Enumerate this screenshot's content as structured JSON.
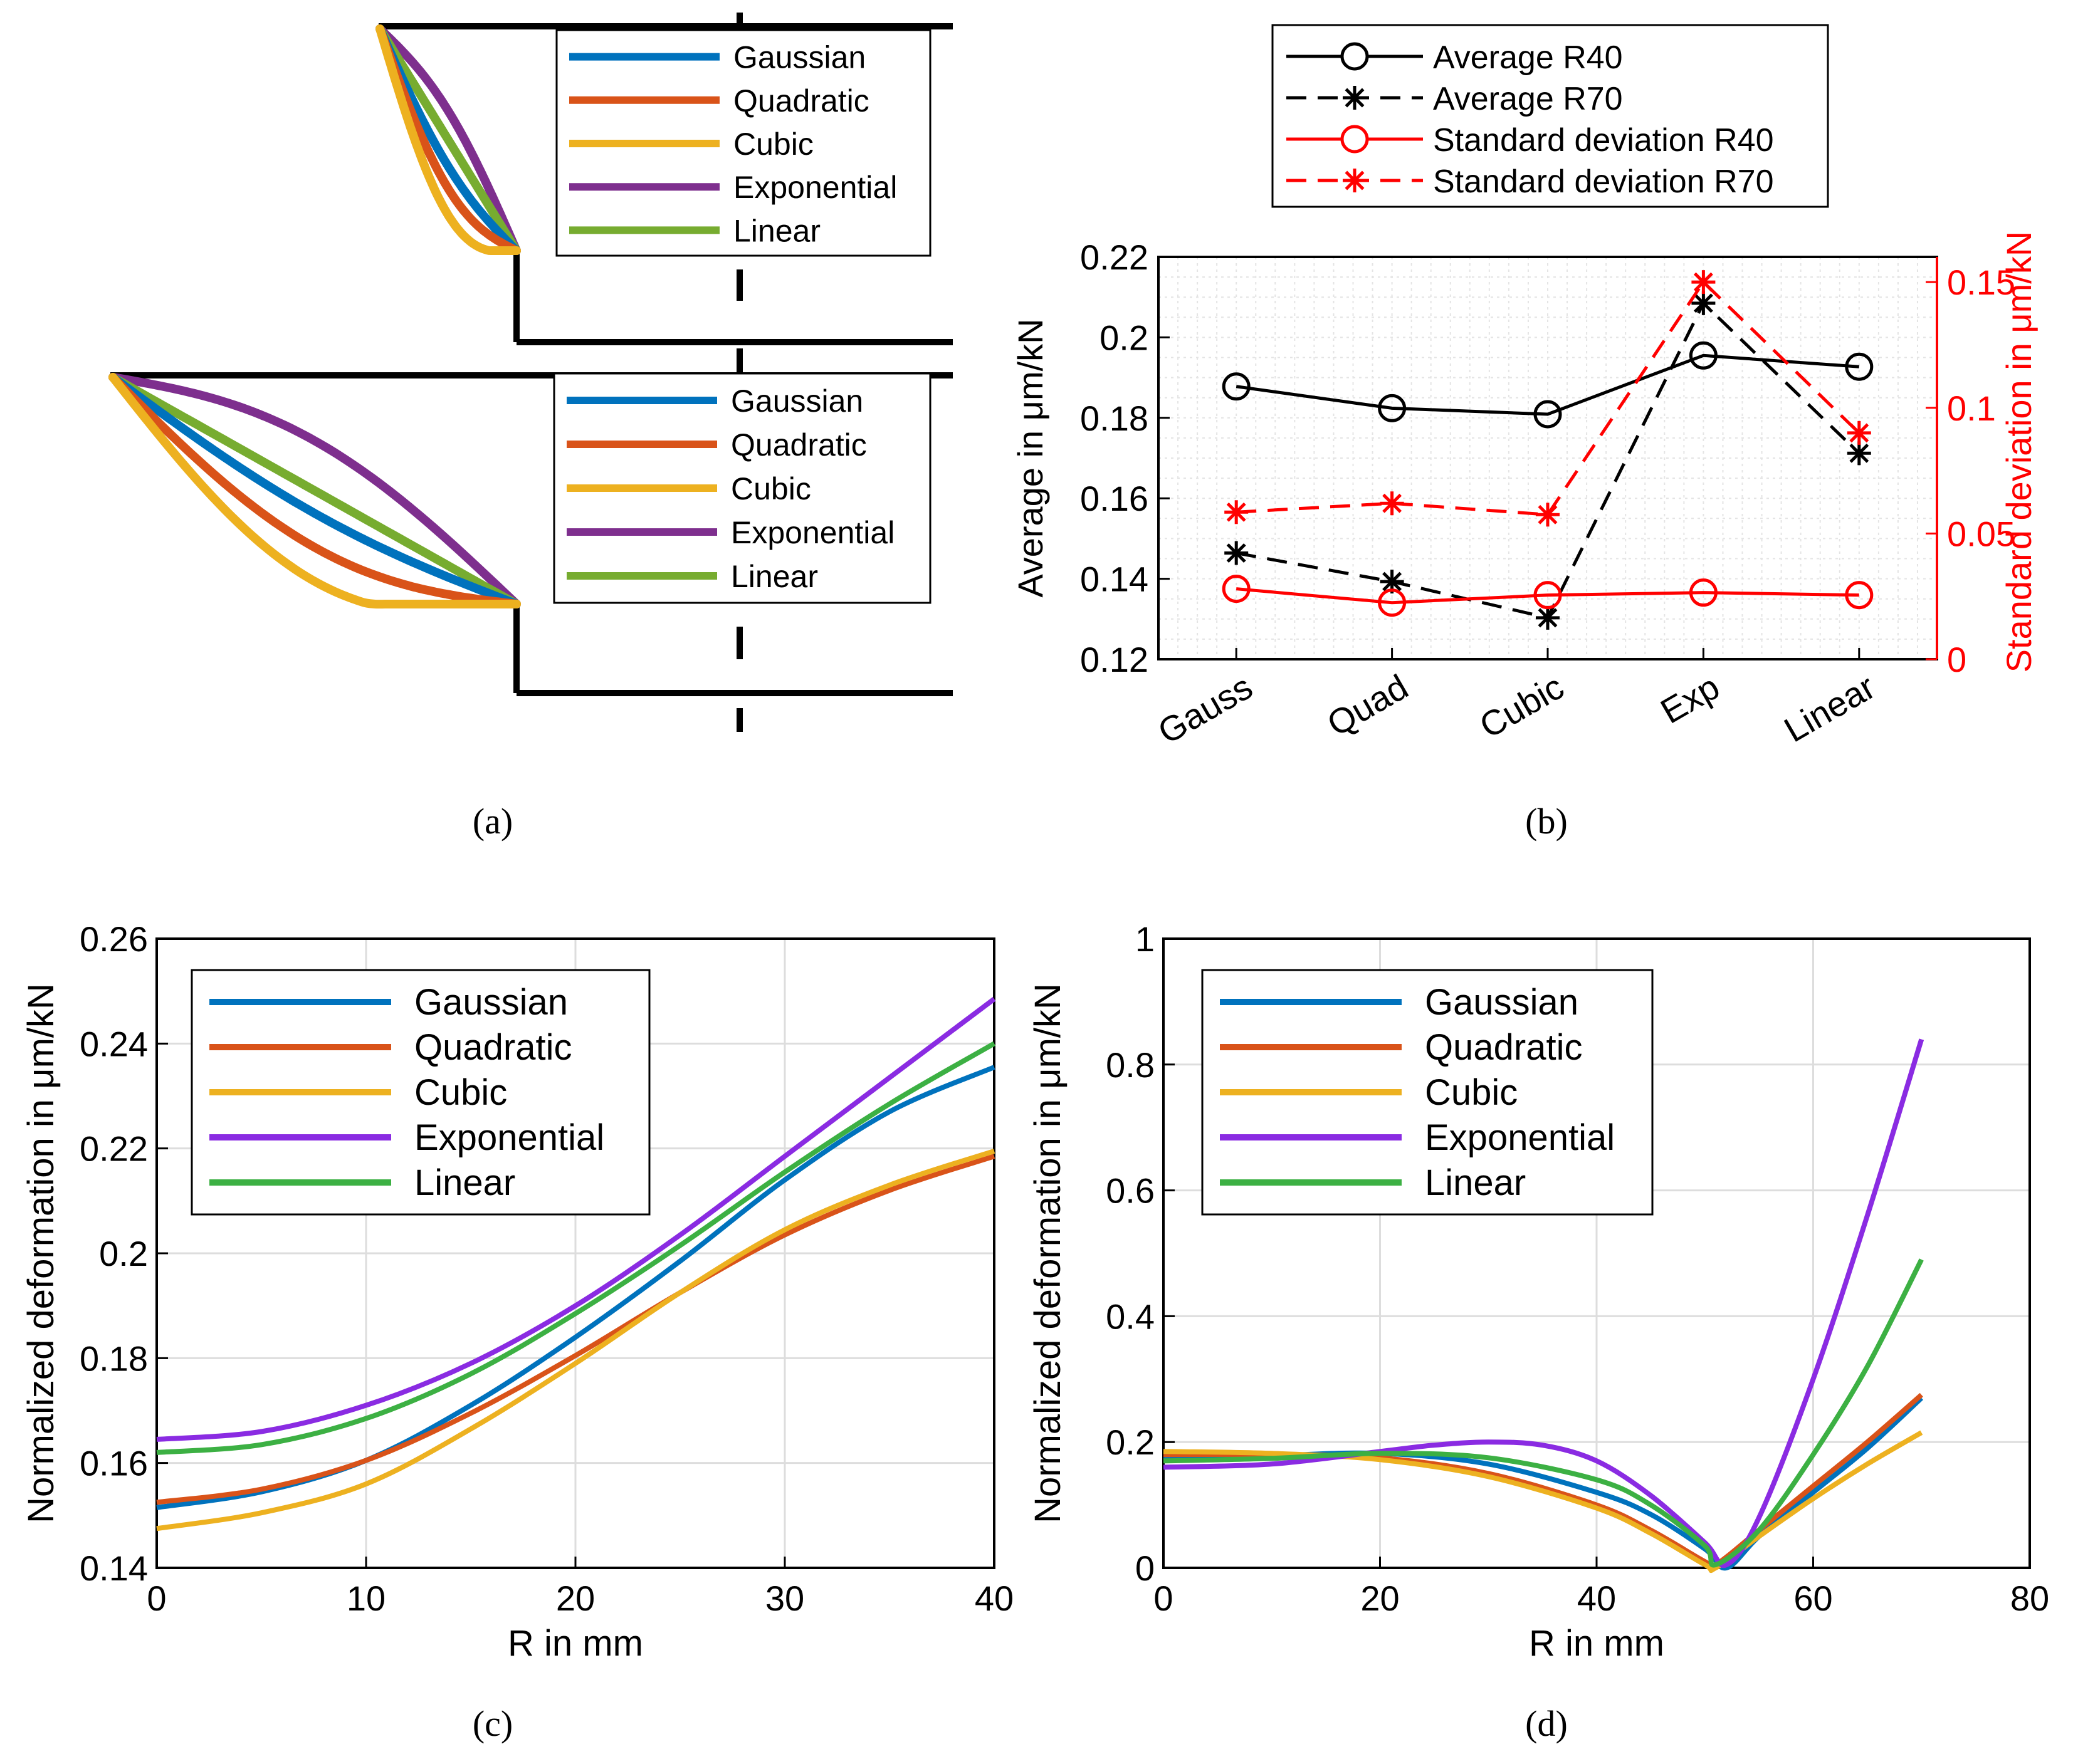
{
  "colors": {
    "gaussian": "#0072BD",
    "quadratic": "#D95319",
    "cubic": "#EDB120",
    "exponential_a": "#7E2F8E",
    "exponential_cd": "#8A2BE2",
    "linear": "#77AC30",
    "linear_cd": "#3CB043",
    "black": "#000000",
    "red": "#FF0000",
    "grid": "#DDDDDD"
  },
  "panel_a": {
    "caption": "(a)",
    "legend_top": [
      "Gaussian",
      "Quadratic",
      "Cubic",
      "Exponential",
      "Linear"
    ],
    "legend_bottom": [
      "Gaussian",
      "Quadratic",
      "Cubic",
      "Exponential",
      "Linear"
    ]
  },
  "panel_b": {
    "caption": "(b)",
    "legend": [
      "Average R40",
      "Average R70",
      "Standard deviation R40",
      "Standard deviation R70"
    ]
  },
  "panel_c": {
    "caption": "(c)"
  },
  "panel_d": {
    "caption": "(d)"
  },
  "chart_data": [
    {
      "id": "b",
      "type": "line",
      "categories": [
        "Gauss",
        "Quad",
        "Cubic",
        "Exp",
        "Linear"
      ],
      "ylabel": "Average in μm/kN",
      "y2label": "Standard deviation in μm/kN",
      "ylim": [
        0.12,
        0.22
      ],
      "yticks": [
        0.12,
        0.14,
        0.16,
        0.18,
        0.2,
        0.22
      ],
      "y2lim": [
        0,
        0.16
      ],
      "y2ticks": [
        0,
        0.05,
        0.1,
        0.15
      ],
      "grid": true,
      "series": [
        {
          "name": "Average R40",
          "axis": "left",
          "values": [
            0.1878,
            0.1824,
            0.1809,
            0.1955,
            0.1927
          ]
        },
        {
          "name": "Average R70",
          "axis": "left",
          "values": [
            0.1464,
            0.1393,
            0.1303,
            0.2085,
            0.1712
          ]
        },
        {
          "name": "Standard deviation R40",
          "axis": "right",
          "values": [
            0.028,
            0.0225,
            0.0255,
            0.0265,
            0.0255
          ]
        },
        {
          "name": "Standard deviation R70",
          "axis": "right",
          "values": [
            0.0585,
            0.062,
            0.0575,
            0.15,
            0.09
          ]
        }
      ]
    },
    {
      "id": "c",
      "type": "line",
      "xlabel": "R in mm",
      "ylabel": "Normalized deformation in μm/kN",
      "xlim": [
        0,
        40
      ],
      "xticks": [
        0,
        10,
        20,
        30,
        40
      ],
      "ylim": [
        0.14,
        0.26
      ],
      "yticks": [
        0.14,
        0.16,
        0.18,
        0.2,
        0.22,
        0.24,
        0.26
      ],
      "grid": true,
      "legend": [
        "Gaussian",
        "Quadratic",
        "Cubic",
        "Exponential",
        "Linear"
      ],
      "x": [
        0,
        5,
        10,
        15,
        20,
        25,
        30,
        35,
        40
      ],
      "series": [
        {
          "name": "Gaussian",
          "values": [
            0.1515,
            0.1545,
            0.1605,
            0.171,
            0.184,
            0.1985,
            0.214,
            0.227,
            0.2355
          ]
        },
        {
          "name": "Quadratic",
          "values": [
            0.1525,
            0.155,
            0.1605,
            0.1695,
            0.1805,
            0.1925,
            0.2035,
            0.212,
            0.2185
          ]
        },
        {
          "name": "Cubic",
          "values": [
            0.1475,
            0.1505,
            0.156,
            0.1665,
            0.179,
            0.1925,
            0.2045,
            0.213,
            0.2195
          ]
        },
        {
          "name": "Exponential",
          "values": [
            0.1645,
            0.166,
            0.171,
            0.179,
            0.19,
            0.2035,
            0.2185,
            0.2335,
            0.2485
          ]
        },
        {
          "name": "Linear",
          "values": [
            0.162,
            0.1635,
            0.1685,
            0.177,
            0.1885,
            0.2015,
            0.2155,
            0.2285,
            0.24
          ]
        }
      ]
    },
    {
      "id": "d",
      "type": "line",
      "xlabel": "R in mm",
      "ylabel": "Normalized deformation in μm/kN",
      "xlim": [
        0,
        80
      ],
      "xticks": [
        0,
        20,
        40,
        60,
        80
      ],
      "ylim": [
        0,
        1
      ],
      "yticks": [
        0,
        0.2,
        0.4,
        0.6,
        0.8,
        1
      ],
      "grid": true,
      "legend": [
        "Gaussian",
        "Quadratic",
        "Cubic",
        "Exponential",
        "Linear"
      ],
      "series": [
        {
          "name": "Gaussian",
          "x": [
            0,
            10,
            20,
            30,
            40,
            45,
            50,
            52,
            55,
            60,
            65,
            70
          ],
          "values": [
            0.172,
            0.178,
            0.182,
            0.165,
            0.12,
            0.085,
            0.03,
            0.0,
            0.05,
            0.12,
            0.19,
            0.27
          ]
        },
        {
          "name": "Quadratic",
          "x": [
            0,
            10,
            20,
            30,
            40,
            45,
            50,
            51,
            55,
            60,
            65,
            70
          ],
          "values": [
            0.18,
            0.18,
            0.175,
            0.15,
            0.1,
            0.06,
            0.01,
            0.005,
            0.06,
            0.13,
            0.2,
            0.275
          ]
        },
        {
          "name": "Cubic",
          "x": [
            0,
            10,
            20,
            30,
            40,
            45,
            50,
            51,
            55,
            60,
            65,
            70
          ],
          "values": [
            0.185,
            0.182,
            0.172,
            0.145,
            0.095,
            0.055,
            0.005,
            0.0,
            0.05,
            0.11,
            0.165,
            0.215
          ]
        },
        {
          "name": "Exponential",
          "x": [
            0,
            10,
            20,
            25,
            30,
            35,
            40,
            45,
            50,
            52,
            55,
            60,
            65,
            70
          ],
          "values": [
            0.16,
            0.165,
            0.185,
            0.195,
            0.2,
            0.195,
            0.17,
            0.115,
            0.04,
            0.005,
            0.08,
            0.3,
            0.56,
            0.84
          ]
        },
        {
          "name": "Linear",
          "x": [
            0,
            10,
            20,
            30,
            40,
            45,
            50,
            51,
            55,
            60,
            65,
            70
          ],
          "values": [
            0.17,
            0.174,
            0.182,
            0.175,
            0.14,
            0.1,
            0.035,
            0.005,
            0.06,
            0.18,
            0.32,
            0.49
          ]
        }
      ]
    }
  ]
}
